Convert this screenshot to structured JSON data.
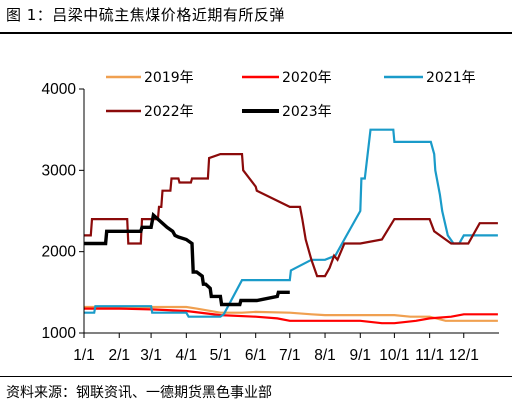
{
  "header": {
    "title": "图 1：吕梁中硫主焦煤价格近期有所反弹"
  },
  "footer": {
    "source": "资料来源：钢联资讯、一德期货黑色事业部"
  },
  "colors": {
    "2019年": "#f0a050",
    "2020年": "#ff0000",
    "2021年": "#1a9bc9",
    "2022年": "#8b0a0a",
    "2023年": "#000000"
  },
  "chart_data": {
    "type": "line",
    "title": "",
    "xlabel": "",
    "ylabel": "",
    "x_ticks": [
      "1/1",
      "2/1",
      "3/1",
      "4/1",
      "5/1",
      "6/1",
      "7/1",
      "8/1",
      "9/1",
      "10/1",
      "11/1",
      "12/1"
    ],
    "ylim": [
      1000,
      4000
    ],
    "y_ticks": [
      1000,
      2000,
      3000,
      4000
    ],
    "grid": false,
    "legend": {
      "position": "top",
      "entries": [
        "2019年",
        "2020年",
        "2021年",
        "2022年",
        "2023年"
      ]
    },
    "series": [
      {
        "name": "2019年",
        "x": [
          "01-01",
          "02-01",
          "03-01",
          "04-01",
          "04-10",
          "05-01",
          "05-20",
          "06-01",
          "07-01",
          "07-20",
          "08-01",
          "09-01",
          "10-01",
          "10-15",
          "11-01",
          "11-15",
          "12-01",
          "12-31"
        ],
        "y": [
          1320,
          1320,
          1320,
          1320,
          1300,
          1250,
          1250,
          1260,
          1250,
          1230,
          1220,
          1220,
          1220,
          1200,
          1200,
          1150,
          1150,
          1150
        ]
      },
      {
        "name": "2020年",
        "x": [
          "01-01",
          "02-01",
          "03-01",
          "04-01",
          "05-01",
          "06-01",
          "06-20",
          "07-01",
          "08-01",
          "09-01",
          "09-20",
          "10-01",
          "10-20",
          "11-01",
          "11-20",
          "12-01",
          "12-31"
        ],
        "y": [
          1300,
          1300,
          1290,
          1270,
          1220,
          1200,
          1180,
          1150,
          1150,
          1150,
          1120,
          1120,
          1150,
          1180,
          1200,
          1230,
          1230
        ]
      },
      {
        "name": "2021年",
        "x": [
          "01-01",
          "01-10",
          "01-11",
          "03-01",
          "03-02",
          "04-01",
          "04-03",
          "05-01",
          "05-04",
          "05-20",
          "06-01",
          "06-02",
          "07-01",
          "07-02",
          "07-20",
          "08-01",
          "08-10",
          "08-20",
          "09-01",
          "09-02",
          "09-05",
          "09-10",
          "09-30",
          "10-01",
          "10-10",
          "11-01",
          "11-02",
          "11-05",
          "11-06",
          "11-10",
          "11-12",
          "11-17",
          "11-22",
          "11-27",
          "12-01",
          "12-15",
          "12-31"
        ],
        "y": [
          1250,
          1250,
          1330,
          1330,
          1250,
          1250,
          1200,
          1200,
          1230,
          1650,
          1650,
          1650,
          1650,
          1770,
          1900,
          1900,
          1950,
          2200,
          2500,
          2900,
          2900,
          3500,
          3500,
          3350,
          3350,
          3350,
          3350,
          3200,
          3000,
          2700,
          2500,
          2200,
          2100,
          2100,
          2200,
          2200,
          2200
        ]
      },
      {
        "name": "2022年",
        "x": [
          "01-01",
          "01-07",
          "01-08",
          "02-08",
          "02-09",
          "02-20",
          "02-21",
          "03-01",
          "03-07",
          "03-08",
          "03-10",
          "03-11",
          "03-18",
          "03-19",
          "03-25",
          "03-26",
          "04-05",
          "04-06",
          "04-20",
          "04-21",
          "05-01",
          "05-02",
          "05-20",
          "05-21",
          "06-01",
          "06-02",
          "07-01",
          "07-10",
          "07-12",
          "07-15",
          "07-20",
          "07-25",
          "07-30",
          "08-01",
          "08-05",
          "08-09",
          "08-12",
          "08-18",
          "09-01",
          "09-20",
          "10-01",
          "10-05",
          "11-01",
          "11-05",
          "11-15",
          "11-20",
          "12-05",
          "12-15",
          "12-31"
        ],
        "y": [
          2200,
          2200,
          2400,
          2400,
          2100,
          2100,
          2400,
          2400,
          2400,
          2550,
          2550,
          2750,
          2750,
          2900,
          2900,
          2850,
          2850,
          2900,
          2900,
          3150,
          3200,
          3200,
          3200,
          3000,
          2800,
          2750,
          2550,
          2550,
          2400,
          2150,
          1900,
          1700,
          1700,
          1700,
          1800,
          1950,
          1900,
          2100,
          2100,
          2150,
          2400,
          2400,
          2400,
          2250,
          2150,
          2100,
          2100,
          2350,
          2350
        ]
      },
      {
        "name": "2023年",
        "x": [
          "01-01",
          "01-20",
          "01-21",
          "02-20",
          "02-21",
          "03-01",
          "03-03",
          "03-15",
          "03-20",
          "03-22",
          "03-25",
          "04-01",
          "04-06",
          "04-07",
          "04-10",
          "04-15",
          "04-16",
          "04-18",
          "04-22",
          "04-23",
          "05-01",
          "05-02",
          "05-05",
          "05-06",
          "05-18",
          "05-19",
          "06-01",
          "06-02",
          "06-20",
          "06-21",
          "07-01"
        ],
        "y": [
          2100,
          2100,
          2250,
          2250,
          2300,
          2300,
          2450,
          2300,
          2250,
          2200,
          2180,
          2150,
          2100,
          1750,
          1750,
          1700,
          1600,
          1600,
          1550,
          1450,
          1450,
          1350,
          1350,
          1350,
          1350,
          1400,
          1400,
          1400,
          1450,
          1500,
          1500
        ]
      }
    ]
  }
}
